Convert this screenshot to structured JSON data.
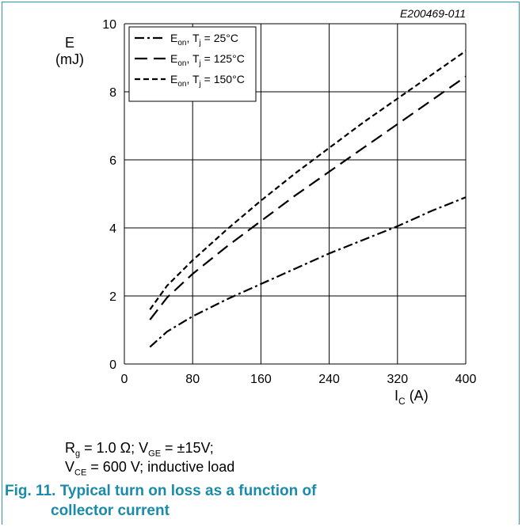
{
  "figure_code": "E200469-011",
  "chart_data": {
    "type": "line",
    "ylabel_main": "E",
    "ylabel_unit": "(mJ)",
    "xlabel_main": "I",
    "xlabel_sub": "C",
    "xlabel_unit": " (A)",
    "xlim": [
      0,
      400
    ],
    "ylim": [
      0,
      10
    ],
    "xticks": [
      "0",
      "80",
      "160",
      "240",
      "320",
      "400"
    ],
    "yticks": [
      "0",
      "2",
      "4",
      "6",
      "8",
      "10"
    ],
    "grid": true,
    "legend_position": "top-left",
    "series": [
      {
        "name_main": "E",
        "name_sub": "on",
        "name_rest1": ", T",
        "name_sub2": "j",
        "name_rest2": " = 25°C",
        "dash": "12,4,3,4",
        "x": [
          30,
          50,
          80,
          120,
          160,
          200,
          240,
          280,
          320,
          360,
          400
        ],
        "y": [
          0.5,
          0.95,
          1.4,
          1.9,
          2.35,
          2.8,
          3.25,
          3.65,
          4.05,
          4.5,
          4.9
        ]
      },
      {
        "name_main": "E",
        "name_sub": "on",
        "name_rest1": ", T",
        "name_sub2": "j",
        "name_rest2": " = 125°C",
        "dash": "16,8",
        "x": [
          30,
          50,
          80,
          120,
          160,
          200,
          240,
          280,
          320,
          360,
          400
        ],
        "y": [
          1.3,
          1.95,
          2.65,
          3.45,
          4.2,
          4.95,
          5.65,
          6.35,
          7.05,
          7.75,
          8.45
        ]
      },
      {
        "name_main": "E",
        "name_sub": "on",
        "name_rest1": ", T",
        "name_sub2": "j",
        "name_rest2": " = 150°C",
        "dash": "7,4",
        "x": [
          30,
          50,
          80,
          120,
          160,
          200,
          240,
          280,
          320,
          360,
          400
        ],
        "y": [
          1.6,
          2.3,
          3.05,
          3.95,
          4.8,
          5.6,
          6.35,
          7.1,
          7.8,
          8.5,
          9.2
        ]
      }
    ]
  },
  "conditions": {
    "line1_r": "R",
    "line1_r_sub": "g",
    "line1_a": " = 1.0 Ω; V",
    "line1_v_sub": "GE",
    "line1_b": " = ±15V;",
    "line2_v": "V",
    "line2_v_sub": "CE",
    "line2_rest": " = 600 V; inductive load"
  },
  "caption": {
    "line1": "Fig. 11. Typical turn on loss as a function of",
    "line2": "collector current"
  }
}
